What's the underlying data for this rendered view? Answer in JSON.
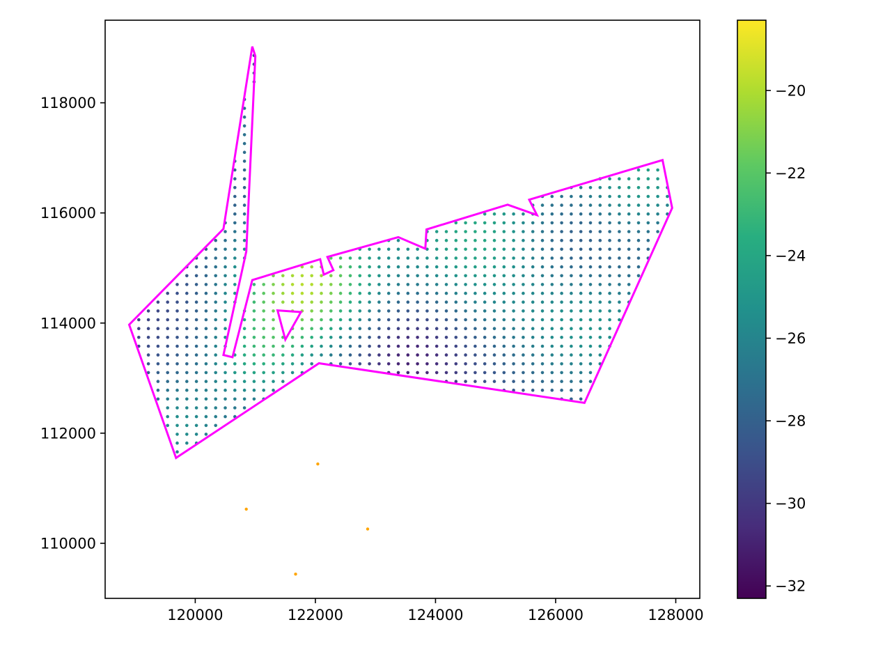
{
  "chart_data": {
    "type": "scatter",
    "title": "",
    "xlabel": "",
    "ylabel": "",
    "xlim": [
      118500,
      128400
    ],
    "ylim": [
      109000,
      119500
    ],
    "x_ticks": [
      120000,
      122000,
      124000,
      126000,
      128000
    ],
    "x_tick_labels": [
      "120000",
      "122000",
      "124000",
      "126000",
      "128000"
    ],
    "y_ticks": [
      110000,
      112000,
      114000,
      116000,
      118000
    ],
    "y_tick_labels": [
      "110000",
      "112000",
      "114000",
      "116000",
      "118000"
    ],
    "grid": false,
    "colormap": "viridis",
    "colorbar": {
      "min": -32.3,
      "max": -18.3,
      "ticks": [
        -20,
        -22,
        -24,
        -26,
        -28,
        -30,
        -32
      ],
      "tick_labels": [
        "−20",
        "−22",
        "−24",
        "−26",
        "−28",
        "−30",
        "−32"
      ]
    },
    "grid_points": {
      "x_spacing": 160,
      "y_spacing": 160,
      "field_description": "values between colorbar min and max sampled on a regular grid inside the boundary"
    },
    "boundary_color": "#ff00ff",
    "boundary": [
      [
        119680,
        111550
      ],
      [
        118900,
        113970
      ],
      [
        120470,
        115710
      ],
      [
        120950,
        119020
      ],
      [
        121000,
        118850
      ],
      [
        120850,
        115300
      ],
      [
        120470,
        113420
      ],
      [
        120620,
        113380
      ],
      [
        120950,
        114780
      ],
      [
        122080,
        115160
      ],
      [
        122140,
        114880
      ],
      [
        122300,
        114960
      ],
      [
        122200,
        115200
      ],
      [
        123380,
        115560
      ],
      [
        123830,
        115350
      ],
      [
        123850,
        115700
      ],
      [
        125200,
        116150
      ],
      [
        125690,
        115960
      ],
      [
        125560,
        116240
      ],
      [
        127780,
        116960
      ],
      [
        127940,
        116090
      ],
      [
        126480,
        112550
      ],
      [
        122060,
        113270
      ],
      [
        119680,
        111550
      ]
    ],
    "holes": [
      [
        [
          121370,
          114230
        ],
        [
          121760,
          114200
        ],
        [
          121500,
          113700
        ],
        [
          121370,
          114230
        ]
      ]
    ],
    "outlier_points": {
      "color": "#ffa500",
      "points": [
        [
          122040,
          111440
        ],
        [
          120850,
          110620
        ],
        [
          122870,
          110260
        ],
        [
          121670,
          109440
        ]
      ]
    }
  }
}
